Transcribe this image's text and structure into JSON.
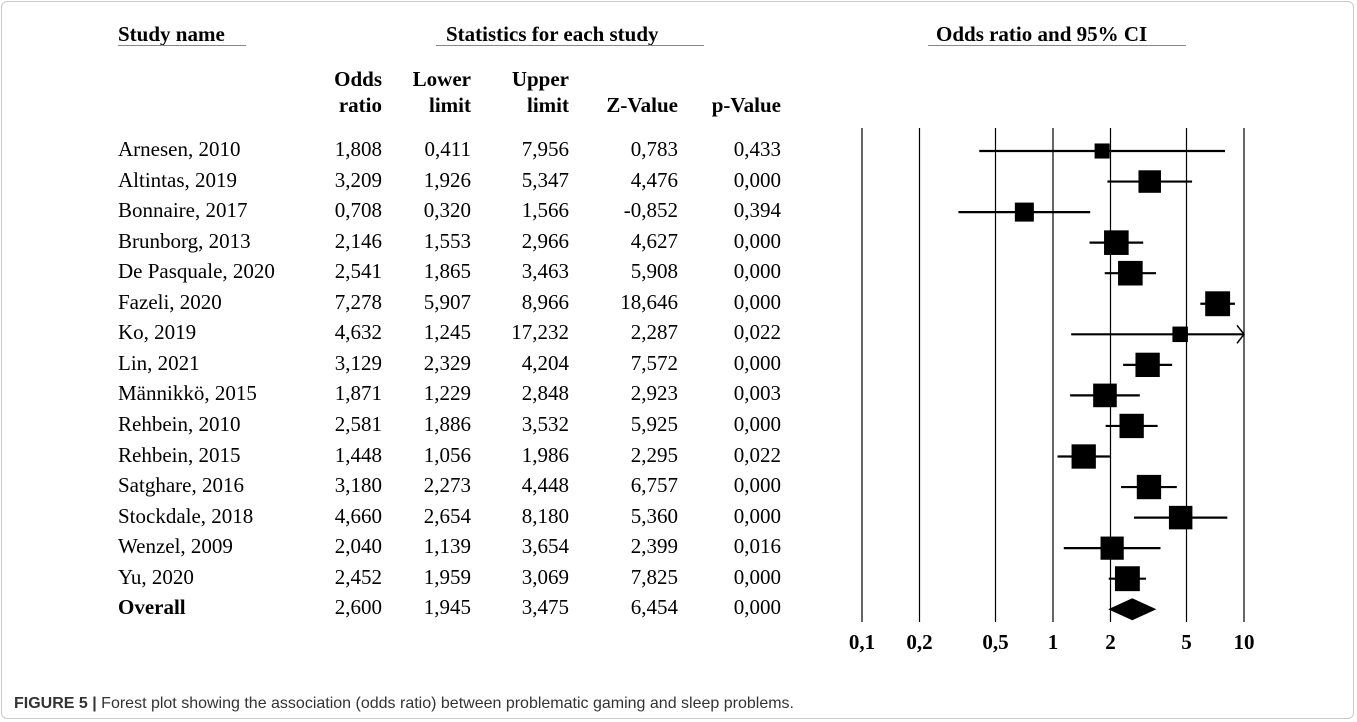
{
  "headers": {
    "study_name": "Study name",
    "statistics": "Statistics for each study",
    "plot_title": "Odds ratio and 95% CI"
  },
  "columns": {
    "odds_1": "Odds",
    "odds_2": "ratio",
    "lower_1": "Lower",
    "lower_2": "limit",
    "upper_1": "Upper",
    "upper_2": "limit",
    "z": "Z-Value",
    "p": "p-Value"
  },
  "rows": [
    {
      "name": "Arnesen, 2010",
      "or": "1,808",
      "lower": "0,411",
      "upper": "7,956",
      "z": "0,783",
      "p": "0,433"
    },
    {
      "name": "Altintas, 2019",
      "or": "3,209",
      "lower": "1,926",
      "upper": "5,347",
      "z": "4,476",
      "p": "0,000"
    },
    {
      "name": "Bonnaire, 2017",
      "or": "0,708",
      "lower": "0,320",
      "upper": "1,566",
      "z": "-0,852",
      "p": "0,394"
    },
    {
      "name": "Brunborg, 2013",
      "or": "2,146",
      "lower": "1,553",
      "upper": "2,966",
      "z": "4,627",
      "p": "0,000"
    },
    {
      "name": "De Pasquale, 2020",
      "or": "2,541",
      "lower": "1,865",
      "upper": "3,463",
      "z": "5,908",
      "p": "0,000"
    },
    {
      "name": "Fazeli, 2020",
      "or": "7,278",
      "lower": "5,907",
      "upper": "8,966",
      "z": "18,646",
      "p": "0,000"
    },
    {
      "name": "Ko, 2019",
      "or": "4,632",
      "lower": "1,245",
      "upper": "17,232",
      "z": "2,287",
      "p": "0,022"
    },
    {
      "name": "Lin, 2021",
      "or": "3,129",
      "lower": "2,329",
      "upper": "4,204",
      "z": "7,572",
      "p": "0,000"
    },
    {
      "name": "Männikkö, 2015",
      "or": "1,871",
      "lower": "1,229",
      "upper": "2,848",
      "z": "2,923",
      "p": "0,003"
    },
    {
      "name": "Rehbein, 2010",
      "or": "2,581",
      "lower": "1,886",
      "upper": "3,532",
      "z": "5,925",
      "p": "0,000"
    },
    {
      "name": "Rehbein, 2015",
      "or": "1,448",
      "lower": "1,056",
      "upper": "1,986",
      "z": "2,295",
      "p": "0,022"
    },
    {
      "name": "Satghare, 2016",
      "or": "3,180",
      "lower": "2,273",
      "upper": "4,448",
      "z": "6,757",
      "p": "0,000"
    },
    {
      "name": "Stockdale, 2018",
      "or": "4,660",
      "lower": "2,654",
      "upper": "8,180",
      "z": "5,360",
      "p": "0,000"
    },
    {
      "name": "Wenzel, 2009",
      "or": "2,040",
      "lower": "1,139",
      "upper": "3,654",
      "z": "2,399",
      "p": "0,016"
    },
    {
      "name": "Yu, 2020",
      "or": "2,452",
      "lower": "1,959",
      "upper": "3,069",
      "z": "7,825",
      "p": "0,000"
    },
    {
      "name": "Overall",
      "or": "2,600",
      "lower": "1,945",
      "upper": "3,475",
      "z": "6,454",
      "p": "0,000"
    }
  ],
  "caption": {
    "label": "FIGURE 5 |",
    "text": " Forest plot showing the association (odds ratio) between problematic gaming and sleep problems."
  },
  "chart_data": {
    "type": "forest",
    "title": "Odds ratio and 95% CI",
    "x_scale": "log",
    "xlim": [
      0.1,
      10
    ],
    "x_ticks": [
      0.1,
      0.2,
      0.5,
      1,
      2,
      5,
      10
    ],
    "x_tick_labels": [
      "0,1",
      "0,2",
      "0,5",
      "1",
      "2",
      "5",
      "10"
    ],
    "vertical_lines_at": [
      0.1,
      0.2,
      0.5,
      1,
      2,
      5,
      10
    ],
    "studies": [
      {
        "name": "Arnesen, 2010",
        "or": 1.808,
        "lower": 0.411,
        "upper": 7.956,
        "weight": 0.22
      },
      {
        "name": "Altintas, 2019",
        "or": 3.209,
        "lower": 1.926,
        "upper": 5.347,
        "weight": 0.75
      },
      {
        "name": "Bonnaire, 2017",
        "or": 0.708,
        "lower": 0.32,
        "upper": 1.566,
        "weight": 0.5
      },
      {
        "name": "Brunborg, 2013",
        "or": 2.146,
        "lower": 1.553,
        "upper": 2.966,
        "weight": 0.9
      },
      {
        "name": "De Pasquale, 2020",
        "or": 2.541,
        "lower": 1.865,
        "upper": 3.463,
        "weight": 0.9
      },
      {
        "name": "Fazeli, 2020",
        "or": 7.278,
        "lower": 5.907,
        "upper": 8.966,
        "weight": 0.92
      },
      {
        "name": "Ko, 2019",
        "or": 4.632,
        "lower": 1.245,
        "upper": 17.232,
        "weight": 0.25
      },
      {
        "name": "Lin, 2021",
        "or": 3.129,
        "lower": 2.329,
        "upper": 4.204,
        "weight": 0.88
      },
      {
        "name": "Männikkö, 2015",
        "or": 1.871,
        "lower": 1.229,
        "upper": 2.848,
        "weight": 0.83
      },
      {
        "name": "Rehbein, 2010",
        "or": 2.581,
        "lower": 1.886,
        "upper": 3.532,
        "weight": 0.88
      },
      {
        "name": "Rehbein, 2015",
        "or": 1.448,
        "lower": 1.056,
        "upper": 1.986,
        "weight": 0.88
      },
      {
        "name": "Satghare, 2016",
        "or": 3.18,
        "lower": 2.273,
        "upper": 4.448,
        "weight": 0.88
      },
      {
        "name": "Stockdale, 2018",
        "or": 4.66,
        "lower": 2.654,
        "upper": 8.18,
        "weight": 0.82
      },
      {
        "name": "Wenzel, 2009",
        "or": 2.04,
        "lower": 1.139,
        "upper": 3.654,
        "weight": 0.8
      },
      {
        "name": "Yu, 2020",
        "or": 2.452,
        "lower": 1.959,
        "upper": 3.069,
        "weight": 0.92
      }
    ],
    "overall": {
      "name": "Overall",
      "or": 2.6,
      "lower": 1.945,
      "upper": 3.475
    }
  }
}
